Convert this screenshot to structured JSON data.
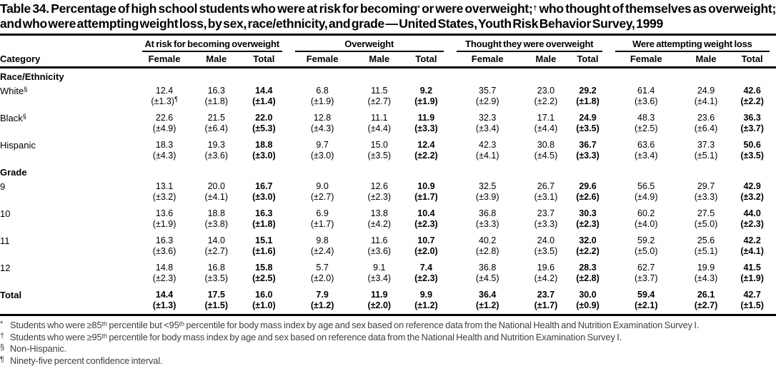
{
  "title": {
    "parts": [
      {
        "t": "Table 34. Percentage of high school students who were at risk for becoming"
      },
      {
        "sup": "*"
      },
      {
        "t": " or were overweight;"
      },
      {
        "sup": "†"
      },
      {
        "t": " who thought of themselves as overweight; and who were attempting weight loss, by sex, race/ethnicity, and grade — United States, Youth Risk Behavior Survey, 1999"
      }
    ]
  },
  "table": {
    "category_header": "Category",
    "groups": [
      {
        "label": "At risk for becoming overweight"
      },
      {
        "label": "Overweight"
      },
      {
        "label": "Thought they were overweight"
      },
      {
        "label": "Were attempting weight loss"
      }
    ],
    "sub_columns": [
      "Female",
      "Male",
      "Total"
    ],
    "sections": [
      {
        "label": "Race/Ethnicity",
        "rows": [
          {
            "label": "White",
            "label_sup": "§",
            "values": [
              "12.4",
              "16.3",
              "14.4",
              "6.8",
              "11.5",
              "9.2",
              "35.7",
              "23.0",
              "29.2",
              "61.4",
              "24.9",
              "42.6"
            ],
            "ci": [
              "(±1.3)",
              "(±1.8)",
              "(±1.4)",
              "(±1.9)",
              "(±2.7)",
              "(±1.9)",
              "(±2.9)",
              "(±2.2)",
              "(±1.8)",
              "(±3.6)",
              "(±4.1)",
              "(±2.2)"
            ],
            "ci_sup": {
              "index": 0,
              "marker": "¶"
            }
          },
          {
            "label": "Black",
            "label_sup": "§",
            "values": [
              "22.6",
              "21.5",
              "22.0",
              "12.8",
              "11.1",
              "11.9",
              "32.3",
              "17.1",
              "24.9",
              "48.3",
              "23.6",
              "36.3"
            ],
            "ci": [
              "(±4.9)",
              "(±6.4)",
              "(±5.3)",
              "(±4.3)",
              "(±4.4)",
              "(±3.3)",
              "(±3.4)",
              "(±4.4)",
              "(±3.5)",
              "(±2.5)",
              "(±6.4)",
              "(±3.7)"
            ]
          },
          {
            "label": "Hispanic",
            "values": [
              "18.3",
              "19.3",
              "18.8",
              "9.7",
              "15.0",
              "12.4",
              "42.3",
              "30.8",
              "36.7",
              "63.6",
              "37.3",
              "50.6"
            ],
            "ci": [
              "(±4.3)",
              "(±3.6)",
              "(±3.0)",
              "(±3.0)",
              "(±3.5)",
              "(±2.2)",
              "(±4.1)",
              "(±4.5)",
              "(±3.3)",
              "(±3.4)",
              "(±5.1)",
              "(±3.5)"
            ]
          }
        ]
      },
      {
        "label": "Grade",
        "rows": [
          {
            "label": "9",
            "values": [
              "13.1",
              "20.0",
              "16.7",
              "9.0",
              "12.6",
              "10.9",
              "32.5",
              "26.7",
              "29.6",
              "56.5",
              "29.7",
              "42.9"
            ],
            "ci": [
              "(±3.2)",
              "(±4.1)",
              "(±3.0)",
              "(±2.7)",
              "(±2.3)",
              "(±1.7)",
              "(±3.9)",
              "(±3.1)",
              "(±2.6)",
              "(±4.9)",
              "(±3.3)",
              "(±3.2)"
            ]
          },
          {
            "label": "10",
            "values": [
              "13.6",
              "18.8",
              "16.3",
              "6.9",
              "13.8",
              "10.4",
              "36.8",
              "23.7",
              "30.3",
              "60.2",
              "27.5",
              "44.0"
            ],
            "ci": [
              "(±1.9)",
              "(±3.8)",
              "(±1.8)",
              "(±1.7)",
              "(±4.2)",
              "(±2.3)",
              "(±3.3)",
              "(±3.3)",
              "(±2.3)",
              "(±4.0)",
              "(±5.0)",
              "(±2.3)"
            ]
          },
          {
            "label": "11",
            "values": [
              "16.3",
              "14.0",
              "15.1",
              "9.8",
              "11.6",
              "10.7",
              "40.2",
              "24.0",
              "32.0",
              "59.2",
              "25.6",
              "42.2"
            ],
            "ci": [
              "(±3.6)",
              "(±2.7)",
              "(±1.6)",
              "(±2.4)",
              "(±3.6)",
              "(±2.0)",
              "(±2.8)",
              "(±3.5)",
              "(±2.2)",
              "(±5.0)",
              "(±5.1)",
              "(±4.1)"
            ]
          },
          {
            "label": "12",
            "values": [
              "14.8",
              "16.8",
              "15.8",
              "5.7",
              "9.1",
              "7.4",
              "36.8",
              "19.6",
              "28.3",
              "62.7",
              "19.9",
              "41.5"
            ],
            "ci": [
              "(±2.3)",
              "(±3.5)",
              "(±2.5)",
              "(±2.0)",
              "(±3.4)",
              "(±2.3)",
              "(±4.5)",
              "(±4.2)",
              "(±2.8)",
              "(±3.7)",
              "(±4.3)",
              "(±1.9)"
            ]
          }
        ]
      }
    ],
    "total": {
      "label": "Total",
      "values": [
        "14.4",
        "17.5",
        "16.0",
        "7.9",
        "11.9",
        "9.9",
        "36.4",
        "23.7",
        "30.0",
        "59.4",
        "26.1",
        "42.7"
      ],
      "ci": [
        "(±1.3)",
        "(±1.5)",
        "(±1.0)",
        "(±1.2)",
        "(±2.0)",
        "(±1.2)",
        "(±1.2)",
        "(±1.7)",
        "(±0.9)",
        "(±2.1)",
        "(±2.7)",
        "(±1.5)"
      ]
    }
  },
  "footnotes": [
    {
      "marker": "*",
      "parts": [
        {
          "t": "Students who were ≥85"
        },
        {
          "sup": "th"
        },
        {
          "t": " percentile but <95"
        },
        {
          "sup": "th"
        },
        {
          "t": " percentile for body mass index by age and sex based on reference data from the National Health and Nutrition Examination Survey I."
        }
      ]
    },
    {
      "marker": "†",
      "parts": [
        {
          "t": "Students who were ≥95"
        },
        {
          "sup": "th"
        },
        {
          "t": " percentile for body mass index by age and sex based on reference data from the National Health and Nutrition Examination Survey I."
        }
      ]
    },
    {
      "marker": "§",
      "parts": [
        {
          "t": "Non-Hispanic."
        }
      ]
    },
    {
      "marker": "¶",
      "parts": [
        {
          "t": "Ninety-five percent confidence interval."
        }
      ]
    }
  ],
  "colors": {
    "text": "#000000",
    "footnote_text": "#3e3e3e",
    "rule": "#000000",
    "background": "#ffffff"
  }
}
